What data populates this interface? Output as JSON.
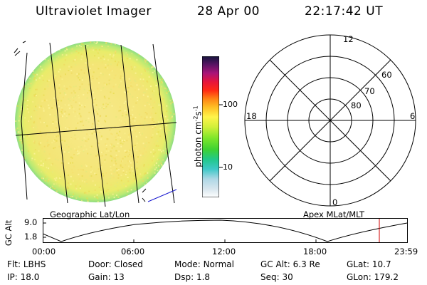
{
  "header": {
    "title": "Ultraviolet Imager",
    "date": "28 Apr 00",
    "time": "22:17:42 UT"
  },
  "colorbar": {
    "unit_main": "photon cm",
    "unit_exp1": "-2",
    "unit_mid": "s",
    "unit_exp2": "-1",
    "tick_100": "100",
    "tick_10": "10"
  },
  "panels": {
    "left_caption": "Geographic Lat/Lon",
    "right_caption": "Apex MLat/MLT"
  },
  "polar": {
    "mlt_labels": [
      "12",
      "18",
      "6",
      "0"
    ],
    "lat_labels": [
      "60",
      "70",
      "80"
    ]
  },
  "altitude_plot": {
    "ylabel": "GC Alt",
    "ytick_top": "9.0",
    "ytick_bottom": "1.8",
    "xticks": [
      "00:00",
      "06:00",
      "12:00",
      "18:00",
      "23:59"
    ]
  },
  "status": {
    "row1": [
      {
        "label": "Flt:",
        "value": "LBHS"
      },
      {
        "label": "Door:",
        "value": "Closed"
      },
      {
        "label": "Mode:",
        "value": "Normal"
      },
      {
        "label": "GC Alt:",
        "value": "6.3 Re"
      },
      {
        "label": "GLat:",
        "value": "10.7"
      }
    ],
    "row2": [
      {
        "label": "IP:",
        "value": "18.0"
      },
      {
        "label": "Gain:",
        "value": "13"
      },
      {
        "label": "Dsp:",
        "value": "1.8"
      },
      {
        "label": "Seq:",
        "value": "30"
      },
      {
        "label": "GLon:",
        "value": "179.2"
      }
    ]
  },
  "colors": {
    "disk_base": "#f2e870",
    "disk_edge": "#9ee37a",
    "marker": "#d00000",
    "axis": "#000000",
    "track_line": "#1a1ad0"
  }
}
